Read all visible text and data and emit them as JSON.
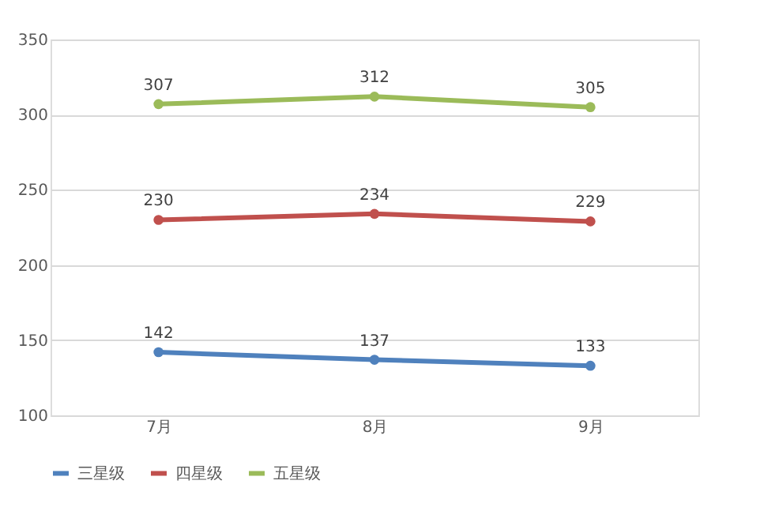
{
  "chart_data": {
    "type": "line",
    "categories": [
      "7月",
      "8月",
      "9月"
    ],
    "series": [
      {
        "name": "三星级",
        "color": "#4f81bd",
        "values": [
          142,
          137,
          133
        ]
      },
      {
        "name": "四星级",
        "color": "#c0504d",
        "values": [
          230,
          234,
          229
        ]
      },
      {
        "name": "五星级",
        "color": "#9bbb59",
        "values": [
          307,
          312,
          305
        ]
      }
    ],
    "ylim": [
      100,
      350
    ],
    "yticks": [
      100,
      150,
      200,
      250,
      300,
      350
    ],
    "grid": "y",
    "legend": "bottom",
    "data_labels": true,
    "marker": "circle",
    "line_style": "solid"
  }
}
